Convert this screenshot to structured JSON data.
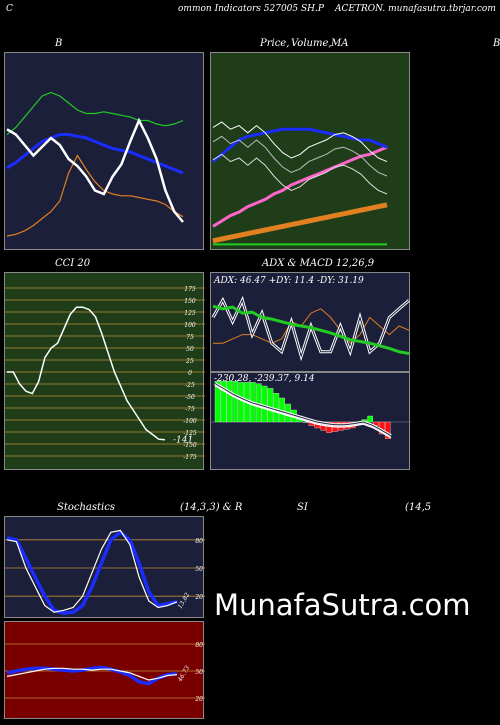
{
  "header": {
    "left": "C",
    "center": "ommon  Indicators 527005 SH.P",
    "right": "ACETRON. munafasutra.tbrjar.com"
  },
  "titles": {
    "bb": "B",
    "price": "Price,",
    "volume": "Volume,",
    "ma": "MA",
    "cut": "B",
    "cci": "CCI 20",
    "adx_macd": "ADX  & MACD 12,26,9",
    "stoch": "Stochastics",
    "stoch_params": "(14,3,3) & R",
    "si": "SI",
    "si_params": "(14,5"
  },
  "adx_text": "ADX: 46.47  +DY: 11.4  -DY: 31.19",
  "macd_text": "-230.28, -239.37,  9.14",
  "cci_last": "-141",
  "stoch_last": "13.82",
  "rsi_last": "46.73",
  "watermark": "MunafaSutra.com",
  "colors": {
    "panel_dark": "#1c1f3a",
    "panel_green": "#1e3d18",
    "panel_red": "#7a0000",
    "white": "#ffffff",
    "blue": "#1a2cff",
    "green": "#22cc22",
    "orange": "#e08020",
    "pink": "#ff66cc"
  },
  "chart_data": [
    {
      "type": "line",
      "panel": "bollinger",
      "series": [
        {
          "color": "#22cc22",
          "values": [
            0.62,
            0.66,
            0.72,
            0.78,
            0.84,
            0.86,
            0.84,
            0.8,
            0.76,
            0.74,
            0.74,
            0.75,
            0.74,
            0.73,
            0.72,
            0.7,
            0.7,
            0.68,
            0.67,
            0.68,
            0.7
          ]
        },
        {
          "color": "#1a2cff",
          "values": [
            0.43,
            0.46,
            0.5,
            0.54,
            0.58,
            0.6,
            0.62,
            0.62,
            0.61,
            0.6,
            0.58,
            0.56,
            0.54,
            0.53,
            0.52,
            0.5,
            0.48,
            0.46,
            0.44,
            0.42,
            0.4
          ]
        },
        {
          "color": "#e08020",
          "values": [
            0.04,
            0.05,
            0.07,
            0.1,
            0.14,
            0.18,
            0.24,
            0.4,
            0.5,
            0.42,
            0.35,
            0.3,
            0.28,
            0.27,
            0.27,
            0.26,
            0.25,
            0.24,
            0.22,
            0.18,
            0.15
          ]
        },
        {
          "color": "#ffffff",
          "values": [
            0.65,
            0.62,
            0.56,
            0.5,
            0.55,
            0.6,
            0.56,
            0.48,
            0.44,
            0.38,
            0.3,
            0.28,
            0.38,
            0.45,
            0.58,
            0.7,
            0.6,
            0.48,
            0.3,
            0.18,
            0.12
          ]
        }
      ]
    },
    {
      "type": "line",
      "panel": "price_ma",
      "series": [
        {
          "color": "#22cc22",
          "values": [
            0.02,
            0.02,
            0.02,
            0.02,
            0.02,
            0.02,
            0.02,
            0.02,
            0.02,
            0.02,
            0.02,
            0.02,
            0.02,
            0.02,
            0.02,
            0.02,
            0.02,
            0.02,
            0.02,
            0.02,
            0.02
          ]
        },
        {
          "color": "#e08020",
          "values": [
            0.04,
            0.05,
            0.06,
            0.07,
            0.08,
            0.09,
            0.1,
            0.11,
            0.12,
            0.13,
            0.14,
            0.15,
            0.16,
            0.17,
            0.18,
            0.19,
            0.2,
            0.21,
            0.22,
            0.23,
            0.24
          ]
        },
        {
          "color": "#ff66cc",
          "values": [
            0.12,
            0.15,
            0.18,
            0.2,
            0.23,
            0.25,
            0.27,
            0.3,
            0.32,
            0.35,
            0.37,
            0.39,
            0.41,
            0.43,
            0.45,
            0.47,
            0.49,
            0.51,
            0.52,
            0.54,
            0.56
          ]
        },
        {
          "color": "#1a2cff",
          "values": [
            0.48,
            0.52,
            0.56,
            0.6,
            0.62,
            0.63,
            0.64,
            0.65,
            0.66,
            0.66,
            0.66,
            0.66,
            0.65,
            0.64,
            0.63,
            0.62,
            0.61,
            0.6,
            0.6,
            0.58,
            0.56
          ]
        },
        {
          "color": "#ffffff",
          "values": [
            0.67,
            0.7,
            0.66,
            0.68,
            0.64,
            0.68,
            0.64,
            0.58,
            0.53,
            0.5,
            0.52,
            0.56,
            0.58,
            0.6,
            0.63,
            0.64,
            0.62,
            0.59,
            0.54,
            0.5,
            0.48
          ]
        }
      ]
    },
    {
      "type": "line",
      "panel": "cci",
      "yticks": [
        175,
        150,
        125,
        100,
        75,
        50,
        25,
        0,
        -25,
        -50,
        -75,
        -100,
        -125,
        -150,
        -175
      ],
      "ylim": [
        -180,
        180
      ],
      "values": [
        0,
        0,
        -25,
        -40,
        -45,
        -20,
        30,
        50,
        60,
        90,
        120,
        135,
        135,
        130,
        115,
        80,
        40,
        0,
        -30,
        -60,
        -80,
        -100,
        -120,
        -130,
        -140,
        -141
      ]
    },
    {
      "type": "line",
      "panel": "adx",
      "series": [
        {
          "name": "ADX",
          "color": "#22cc22",
          "values": [
            0.73,
            0.7,
            0.72,
            0.65,
            0.66,
            0.6,
            0.58,
            0.55,
            0.52,
            0.5,
            0.48,
            0.45,
            0.42,
            0.38,
            0.34,
            0.32,
            0.3,
            0.27,
            0.24,
            0.2,
            0.18
          ]
        },
        {
          "name": "+DY",
          "color": "#ffffff",
          "values": [
            0.6,
            0.8,
            0.55,
            0.8,
            0.4,
            0.65,
            0.3,
            0.2,
            0.55,
            0.15,
            0.5,
            0.2,
            0.2,
            0.5,
            0.2,
            0.6,
            0.2,
            0.3,
            0.6,
            0.7,
            0.8
          ]
        },
        {
          "name": "-DY",
          "color": "#e08020",
          "values": [
            0.3,
            0.3,
            0.35,
            0.4,
            0.4,
            0.35,
            0.3,
            0.35,
            0.55,
            0.5,
            0.65,
            0.7,
            0.6,
            0.45,
            0.3,
            0.4,
            0.6,
            0.5,
            0.4,
            0.5,
            0.45
          ]
        }
      ]
    },
    {
      "type": "bar",
      "panel": "macd",
      "values": [
        34,
        34,
        34,
        34,
        33,
        33,
        33,
        32,
        30,
        28,
        24,
        20,
        15,
        10,
        5,
        0,
        -3,
        -5,
        -7,
        -9,
        -8,
        -7,
        -6,
        -5,
        -2,
        2,
        5,
        -3,
        -10,
        -14
      ]
    },
    {
      "type": "line",
      "panel": "stochastics",
      "yticks": [
        80,
        50,
        20
      ],
      "ylim": [
        0,
        100
      ],
      "series": [
        {
          "color": "#1a2cff",
          "values": [
            82,
            80,
            60,
            40,
            20,
            5,
            2,
            3,
            10,
            30,
            55,
            80,
            88,
            80,
            55,
            25,
            10,
            12,
            14
          ]
        },
        {
          "color": "#ffffff",
          "values": [
            80,
            78,
            50,
            30,
            10,
            3,
            5,
            8,
            20,
            45,
            70,
            88,
            90,
            75,
            40,
            15,
            8,
            10,
            14
          ]
        }
      ]
    },
    {
      "type": "line",
      "panel": "rsi",
      "yticks": [
        80,
        50,
        20
      ],
      "ylim": [
        0,
        100
      ],
      "series": [
        {
          "color": "#1a2cff",
          "values": [
            48,
            50,
            52,
            53,
            53,
            52,
            51,
            50,
            51,
            53,
            54,
            52,
            49,
            45,
            38,
            36,
            42,
            46,
            47
          ]
        },
        {
          "color": "#ffffff",
          "values": [
            44,
            46,
            48,
            50,
            52,
            53,
            53,
            52,
            52,
            51,
            52,
            52,
            50,
            48,
            44,
            40,
            42,
            45,
            46
          ]
        }
      ]
    }
  ]
}
